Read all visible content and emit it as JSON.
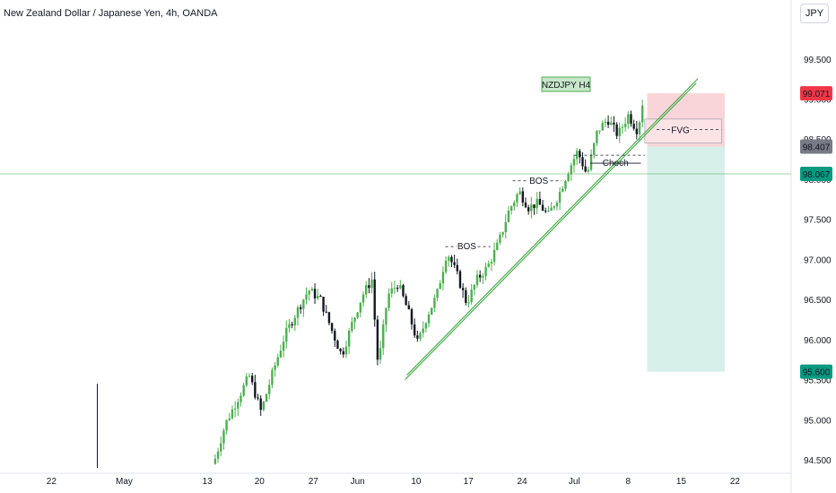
{
  "header": {
    "title": "New Zealand Dollar / Japanese Yen, 4h, OANDA",
    "currency_button": "JPY"
  },
  "chart_data": {
    "type": "candlestick",
    "symbol_label": "NZDJPY H4",
    "y_range": [
      94.4,
      99.9
    ],
    "y_ticks": [
      "94.500",
      "95.000",
      "95.500",
      "96.000",
      "96.500",
      "97.000",
      "97.500",
      "98.000",
      "98.500",
      "99.000",
      "99.500"
    ],
    "y_tick_values": [
      94.5,
      95.0,
      95.5,
      96.0,
      96.5,
      97.0,
      97.5,
      98.0,
      98.5,
      99.0,
      99.5
    ],
    "x_ticks": [
      {
        "label": "22",
        "pos": 0.065
      },
      {
        "label": "May",
        "pos": 0.157
      },
      {
        "label": "13",
        "pos": 0.262
      },
      {
        "label": "20",
        "pos": 0.328
      },
      {
        "label": "27",
        "pos": 0.396
      },
      {
        "label": "Jun",
        "pos": 0.452
      },
      {
        "label": "10",
        "pos": 0.526
      },
      {
        "label": "17",
        "pos": 0.592
      },
      {
        "label": "24",
        "pos": 0.66
      },
      {
        "label": "Jul",
        "pos": 0.726
      },
      {
        "label": "8",
        "pos": 0.794
      },
      {
        "label": "15",
        "pos": 0.861
      },
      {
        "label": "22",
        "pos": 0.929
      }
    ],
    "price_labels": [
      {
        "text": "99.071",
        "value": 99.071,
        "color": "#f23645"
      },
      {
        "text": "98.407",
        "value": 98.407,
        "color": "#787b86"
      },
      {
        "text": "98.067",
        "value": 98.067,
        "color": "#089981"
      },
      {
        "text": "95.600",
        "value": 95.6,
        "color": "#089981"
      }
    ],
    "current_price": 98.067,
    "annotations": {
      "bos_1": "BOS",
      "bos_2": "BOS",
      "choch": "Choch",
      "fvg": "FVG"
    },
    "position": {
      "entry": 98.407,
      "stop": 99.071,
      "target": 95.6
    },
    "colors": {
      "up": "#26a69a",
      "down": "#131722",
      "up_candle": "#4caf50",
      "stop_zone": "#f7c6cc",
      "target_zone": "#cdebe4",
      "trendline": "#4caf50"
    },
    "series_points": [
      [
        0.12,
        95.55
      ],
      [
        0.124,
        94.4
      ],
      [
        0.27,
        94.45
      ],
      [
        0.285,
        94.95
      ],
      [
        0.3,
        95.25
      ],
      [
        0.315,
        95.55
      ],
      [
        0.33,
        95.1
      ],
      [
        0.345,
        95.6
      ],
      [
        0.36,
        96.05
      ],
      [
        0.375,
        96.35
      ],
      [
        0.39,
        96.62
      ],
      [
        0.405,
        96.5
      ],
      [
        0.42,
        96.1
      ],
      [
        0.432,
        95.8
      ],
      [
        0.445,
        96.2
      ],
      [
        0.458,
        96.55
      ],
      [
        0.47,
        96.75
      ],
      [
        0.478,
        95.65
      ],
      [
        0.49,
        96.55
      ],
      [
        0.503,
        96.7
      ],
      [
        0.516,
        96.35
      ],
      [
        0.528,
        95.95
      ],
      [
        0.54,
        96.3
      ],
      [
        0.552,
        96.55
      ],
      [
        0.565,
        97.1
      ],
      [
        0.578,
        96.8
      ],
      [
        0.59,
        96.45
      ],
      [
        0.603,
        96.75
      ],
      [
        0.616,
        96.9
      ],
      [
        0.63,
        97.2
      ],
      [
        0.643,
        97.6
      ],
      [
        0.656,
        97.85
      ],
      [
        0.668,
        97.65
      ],
      [
        0.68,
        97.7
      ],
      [
        0.693,
        97.55
      ],
      [
        0.706,
        97.8
      ],
      [
        0.718,
        98.1
      ],
      [
        0.73,
        98.35
      ],
      [
        0.742,
        98.05
      ],
      [
        0.755,
        98.6
      ],
      [
        0.768,
        98.75
      ],
      [
        0.781,
        98.55
      ],
      [
        0.794,
        98.8
      ],
      [
        0.806,
        98.6
      ],
      [
        0.812,
        98.95
      ],
      [
        0.816,
        98.05
      ]
    ]
  }
}
